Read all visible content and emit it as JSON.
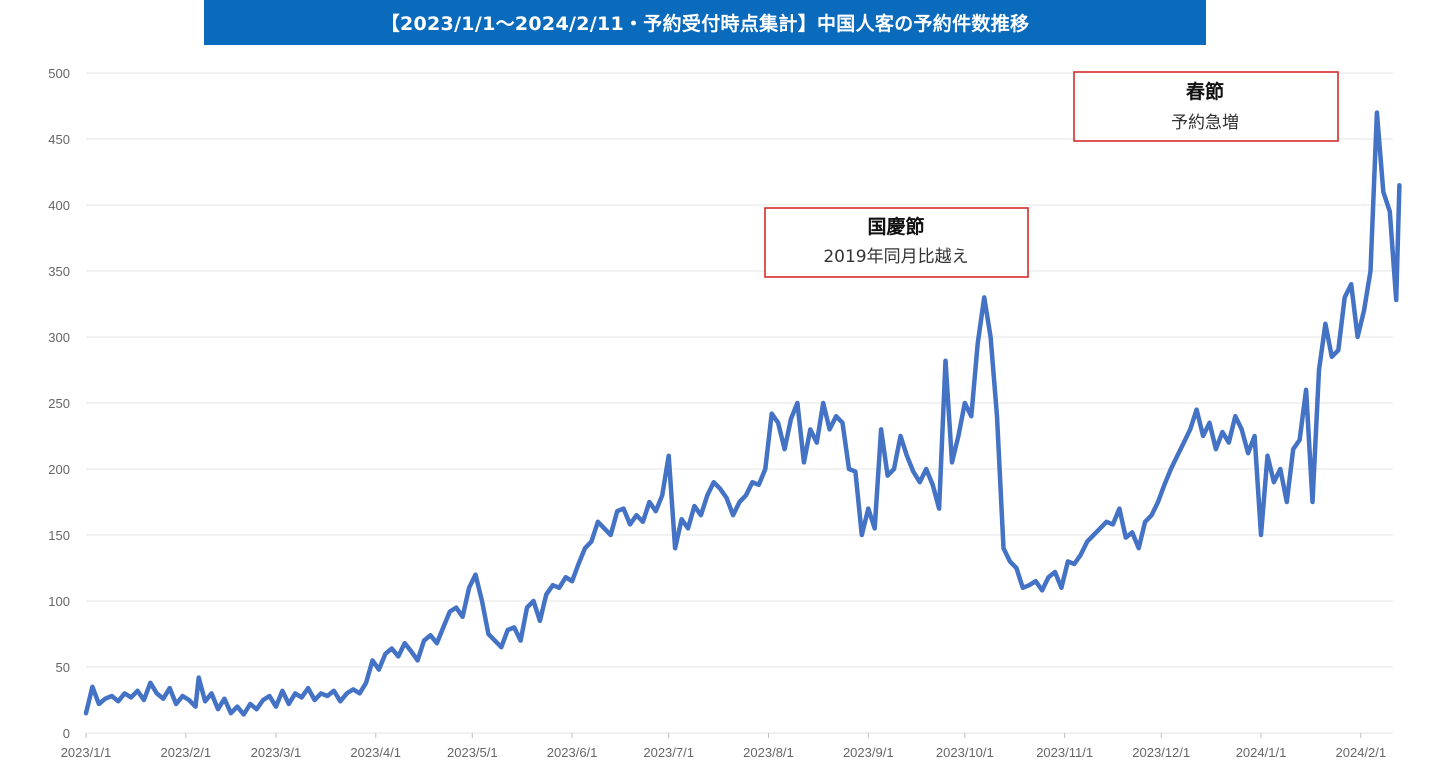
{
  "chart_data": {
    "type": "line",
    "title": "【2023/1/1～2024/2/11・予約受付時点集計】中国人客の予約件数推移",
    "xlabel": "",
    "ylabel": "",
    "ylim": [
      0,
      500
    ],
    "yticks": [
      "0",
      "50",
      "100",
      "150",
      "200",
      "250",
      "300",
      "350",
      "400",
      "450",
      "500"
    ],
    "xticks": [
      "2023/1/1",
      "2023/2/1",
      "2023/3/1",
      "2023/4/1",
      "2023/5/1",
      "2023/6/1",
      "2023/7/1",
      "2023/8/1",
      "2023/9/1",
      "2023/10/1",
      "2023/11/1",
      "2023/12/1",
      "2024/1/1",
      "2024/2/1"
    ],
    "xtick_days": [
      0,
      31,
      59,
      90,
      120,
      151,
      181,
      212,
      243,
      273,
      304,
      334,
      365,
      396
    ],
    "x_range_days": [
      0,
      406
    ],
    "grid": true,
    "series_color": "#4472c4",
    "series": [
      {
        "name": "中国人客の予約件数",
        "points": [
          [
            0,
            15
          ],
          [
            2,
            35
          ],
          [
            4,
            22
          ],
          [
            6,
            26
          ],
          [
            8,
            28
          ],
          [
            10,
            24
          ],
          [
            12,
            30
          ],
          [
            14,
            27
          ],
          [
            16,
            32
          ],
          [
            18,
            25
          ],
          [
            20,
            38
          ],
          [
            22,
            30
          ],
          [
            24,
            26
          ],
          [
            26,
            34
          ],
          [
            28,
            22
          ],
          [
            30,
            28
          ],
          [
            32,
            25
          ],
          [
            34,
            20
          ],
          [
            35,
            42
          ],
          [
            37,
            24
          ],
          [
            39,
            30
          ],
          [
            41,
            18
          ],
          [
            43,
            26
          ],
          [
            45,
            15
          ],
          [
            47,
            20
          ],
          [
            49,
            14
          ],
          [
            51,
            22
          ],
          [
            53,
            18
          ],
          [
            55,
            25
          ],
          [
            57,
            28
          ],
          [
            59,
            20
          ],
          [
            61,
            32
          ],
          [
            63,
            22
          ],
          [
            65,
            30
          ],
          [
            67,
            27
          ],
          [
            69,
            34
          ],
          [
            71,
            25
          ],
          [
            73,
            30
          ],
          [
            75,
            28
          ],
          [
            77,
            32
          ],
          [
            79,
            24
          ],
          [
            81,
            30
          ],
          [
            83,
            33
          ],
          [
            85,
            30
          ],
          [
            87,
            38
          ],
          [
            89,
            55
          ],
          [
            91,
            48
          ],
          [
            93,
            60
          ],
          [
            95,
            64
          ],
          [
            97,
            58
          ],
          [
            99,
            68
          ],
          [
            101,
            62
          ],
          [
            103,
            55
          ],
          [
            105,
            70
          ],
          [
            107,
            74
          ],
          [
            109,
            68
          ],
          [
            111,
            80
          ],
          [
            113,
            92
          ],
          [
            115,
            95
          ],
          [
            117,
            88
          ],
          [
            119,
            110
          ],
          [
            121,
            120
          ],
          [
            123,
            100
          ],
          [
            125,
            75
          ],
          [
            127,
            70
          ],
          [
            129,
            65
          ],
          [
            131,
            78
          ],
          [
            133,
            80
          ],
          [
            135,
            70
          ],
          [
            137,
            95
          ],
          [
            139,
            100
          ],
          [
            141,
            85
          ],
          [
            143,
            105
          ],
          [
            145,
            112
          ],
          [
            147,
            110
          ],
          [
            149,
            118
          ],
          [
            151,
            115
          ],
          [
            153,
            128
          ],
          [
            155,
            140
          ],
          [
            157,
            145
          ],
          [
            159,
            160
          ],
          [
            161,
            155
          ],
          [
            163,
            150
          ],
          [
            165,
            168
          ],
          [
            167,
            170
          ],
          [
            169,
            158
          ],
          [
            171,
            165
          ],
          [
            173,
            160
          ],
          [
            175,
            175
          ],
          [
            177,
            168
          ],
          [
            179,
            180
          ],
          [
            181,
            210
          ],
          [
            183,
            140
          ],
          [
            185,
            162
          ],
          [
            187,
            155
          ],
          [
            189,
            172
          ],
          [
            191,
            165
          ],
          [
            193,
            180
          ],
          [
            195,
            190
          ],
          [
            197,
            185
          ],
          [
            199,
            178
          ],
          [
            201,
            165
          ],
          [
            203,
            175
          ],
          [
            205,
            180
          ],
          [
            207,
            190
          ],
          [
            209,
            188
          ],
          [
            211,
            200
          ],
          [
            213,
            242
          ],
          [
            215,
            235
          ],
          [
            217,
            215
          ],
          [
            219,
            238
          ],
          [
            221,
            250
          ],
          [
            223,
            205
          ],
          [
            225,
            230
          ],
          [
            227,
            220
          ],
          [
            229,
            250
          ],
          [
            231,
            230
          ],
          [
            233,
            240
          ],
          [
            235,
            235
          ],
          [
            237,
            200
          ],
          [
            239,
            198
          ],
          [
            241,
            150
          ],
          [
            243,
            170
          ],
          [
            245,
            155
          ],
          [
            247,
            230
          ],
          [
            249,
            195
          ],
          [
            251,
            200
          ],
          [
            253,
            225
          ],
          [
            255,
            210
          ],
          [
            257,
            198
          ],
          [
            259,
            190
          ],
          [
            261,
            200
          ],
          [
            263,
            188
          ],
          [
            265,
            170
          ],
          [
            267,
            282
          ],
          [
            269,
            205
          ],
          [
            271,
            225
          ],
          [
            273,
            250
          ],
          [
            275,
            240
          ],
          [
            277,
            295
          ],
          [
            279,
            330
          ],
          [
            281,
            300
          ],
          [
            283,
            240
          ],
          [
            285,
            140
          ],
          [
            287,
            130
          ],
          [
            289,
            125
          ],
          [
            291,
            110
          ],
          [
            293,
            112
          ],
          [
            295,
            115
          ],
          [
            297,
            108
          ],
          [
            299,
            118
          ],
          [
            301,
            122
          ],
          [
            303,
            110
          ],
          [
            305,
            130
          ],
          [
            307,
            128
          ],
          [
            309,
            135
          ],
          [
            311,
            145
          ],
          [
            313,
            150
          ],
          [
            315,
            155
          ],
          [
            317,
            160
          ],
          [
            319,
            158
          ],
          [
            321,
            170
          ],
          [
            323,
            148
          ],
          [
            325,
            152
          ],
          [
            327,
            140
          ],
          [
            329,
            160
          ],
          [
            331,
            165
          ],
          [
            333,
            175
          ],
          [
            335,
            188
          ],
          [
            337,
            200
          ],
          [
            339,
            210
          ],
          [
            341,
            220
          ],
          [
            343,
            230
          ],
          [
            345,
            245
          ],
          [
            347,
            225
          ],
          [
            349,
            235
          ],
          [
            351,
            215
          ],
          [
            353,
            228
          ],
          [
            355,
            220
          ],
          [
            357,
            240
          ],
          [
            359,
            230
          ],
          [
            361,
            212
          ],
          [
            363,
            225
          ],
          [
            365,
            150
          ],
          [
            367,
            210
          ],
          [
            369,
            190
          ],
          [
            371,
            200
          ],
          [
            373,
            175
          ],
          [
            375,
            215
          ],
          [
            377,
            222
          ],
          [
            379,
            260
          ],
          [
            381,
            175
          ],
          [
            383,
            275
          ],
          [
            385,
            310
          ],
          [
            387,
            285
          ],
          [
            389,
            290
          ],
          [
            391,
            330
          ],
          [
            393,
            340
          ],
          [
            395,
            300
          ],
          [
            397,
            320
          ],
          [
            399,
            350
          ],
          [
            401,
            470
          ],
          [
            403,
            410
          ],
          [
            405,
            395
          ],
          [
            407,
            328
          ],
          [
            408,
            415
          ]
        ]
      }
    ],
    "annotations": [
      {
        "head": "国慶節",
        "sub": "2019年同月比越え"
      },
      {
        "head": "春節",
        "sub": "予約急増"
      }
    ]
  }
}
